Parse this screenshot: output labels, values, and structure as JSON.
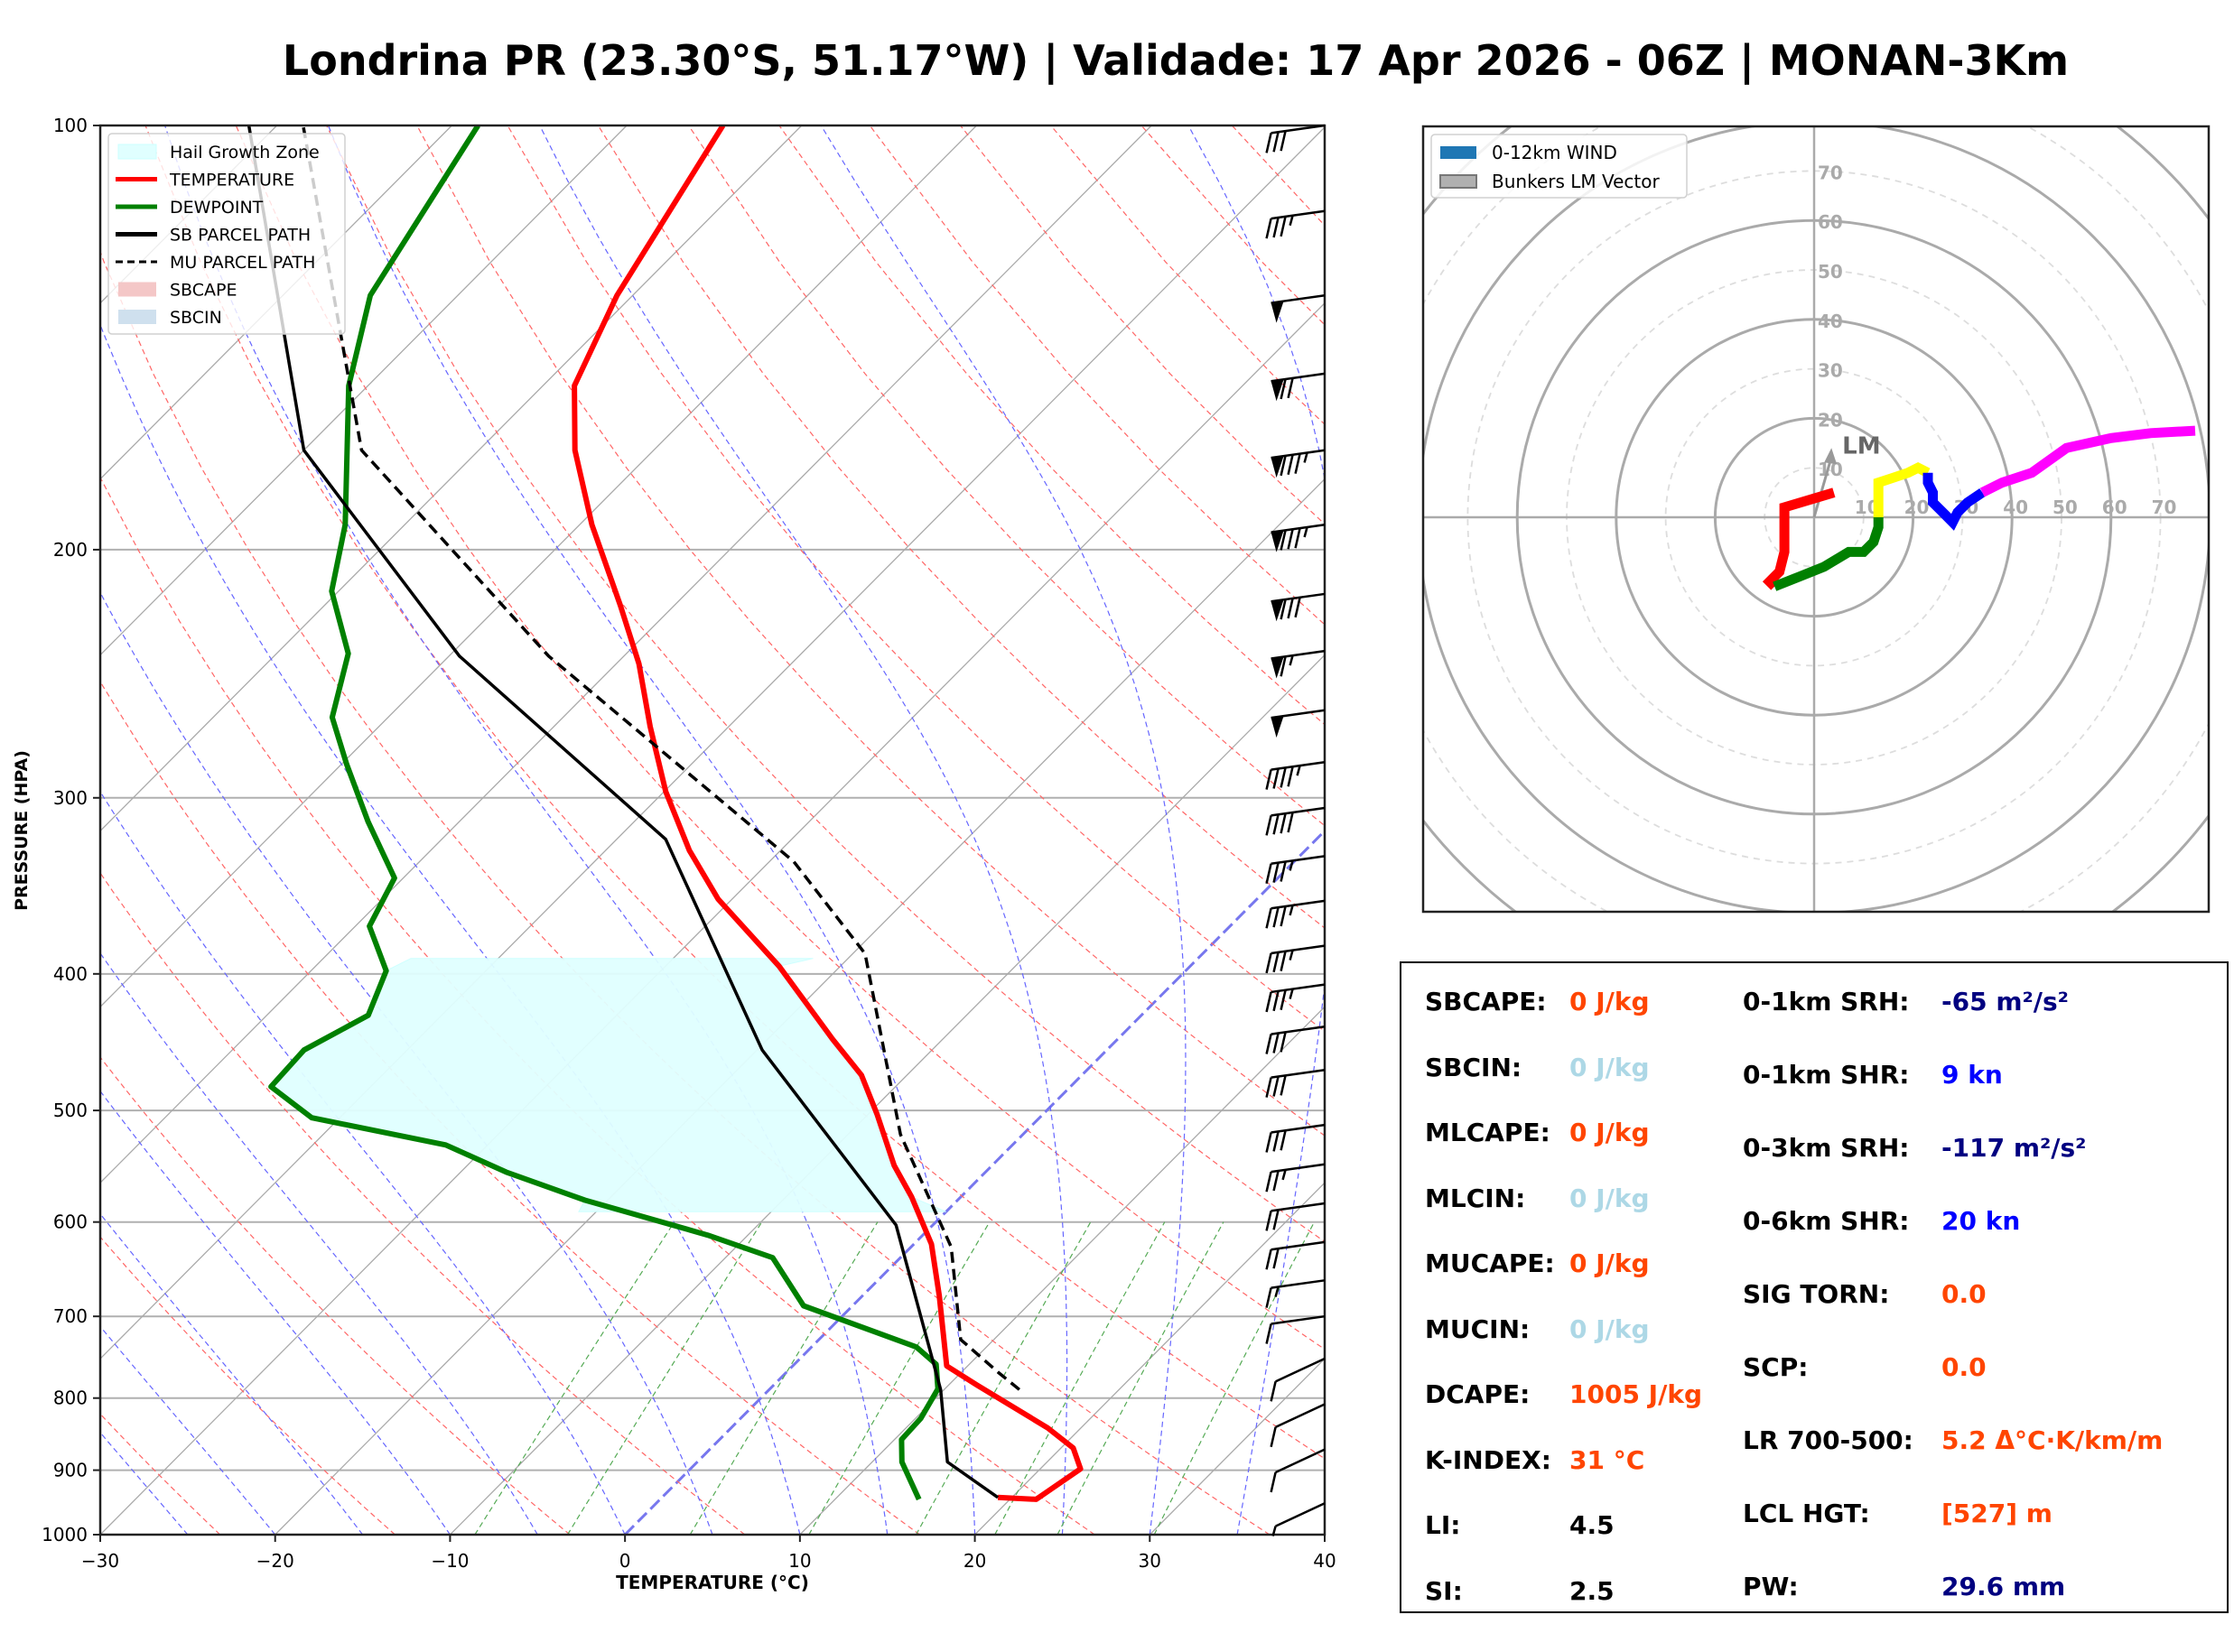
{
  "title": "Londrina PR (23.30°S, 51.17°W) | Validade: 17 Apr 2026 - 06Z | MONAN-3Km",
  "colors": {
    "temperature": "#ff0000",
    "dewpoint": "#008000",
    "parcel": "#000000",
    "hail_zone": "#e0ffff",
    "orange": "#ff4500",
    "lightblue": "#add8e6",
    "navy": "#000080",
    "blue": "#0000ff"
  },
  "chart_data": [
    {
      "type": "line",
      "name": "skewt",
      "xlabel": "TEMPERATURE (°C)",
      "ylabel": "PRESSURE (HPA)",
      "xlim": [
        -30,
        40
      ],
      "ylim": [
        1000,
        100
      ],
      "yscale": "log",
      "xticks": [
        -30,
        -20,
        -10,
        0,
        10,
        20,
        30,
        40
      ],
      "xtick_labels": [
        "−30",
        "−20",
        "−10",
        "0",
        "10",
        "20",
        "30",
        "40"
      ],
      "yticks": [
        100,
        200,
        300,
        400,
        500,
        600,
        700,
        800,
        900,
        1000
      ],
      "ytick_labels": [
        "100",
        "200",
        "300",
        "400",
        "500",
        "600",
        "700",
        "800",
        "900",
        "1000"
      ],
      "grid": true,
      "legend": {
        "placement": "top-left",
        "entries": [
          {
            "label": "Hail Growth Zone",
            "kind": "patch",
            "color": "#e0ffff"
          },
          {
            "label": "TEMPERATURE",
            "kind": "line",
            "color": "#ff0000"
          },
          {
            "label": "DEWPOINT",
            "kind": "line",
            "color": "#008000"
          },
          {
            "label": "SB PARCEL PATH",
            "kind": "line",
            "color": "#000000"
          },
          {
            "label": "MU PARCEL PATH",
            "kind": "dashed",
            "color": "#000000"
          },
          {
            "label": "SBCAPE",
            "kind": "patch",
            "color": "#f4c7c7"
          },
          {
            "label": "SBCIN",
            "kind": "patch",
            "color": "#cfe0ee"
          }
        ]
      },
      "series": [
        {
          "name": "TEMPERATURE",
          "points": [
            [
              941,
              19.2
            ],
            [
              944,
              21.5
            ],
            [
              898,
              22.3
            ],
            [
              868,
              20.7
            ],
            [
              840,
              18.1
            ],
            [
              783,
              11.6
            ],
            [
              759,
              8.8
            ],
            [
              677,
              4.4
            ],
            [
              622,
              1.0
            ],
            [
              576,
              -2.8
            ],
            [
              547,
              -5.6
            ],
            [
              503,
              -9.5
            ],
            [
              472,
              -12.6
            ],
            [
              445,
              -16.3
            ],
            [
              395,
              -23.5
            ],
            [
              354,
              -30.8
            ],
            [
              327,
              -35.2
            ],
            [
              297,
              -39.9
            ],
            [
              267,
              -44.5
            ],
            [
              241,
              -48.7
            ],
            [
              219,
              -53.1
            ],
            [
              192,
              -59.3
            ],
            [
              170,
              -64.5
            ],
            [
              153,
              -68.2
            ],
            [
              132,
              -70.9
            ],
            [
              100,
              -74.5
            ]
          ]
        },
        {
          "name": "DEWPOINT",
          "points": [
            [
              944,
              14.8
            ],
            [
              888,
              11.7
            ],
            [
              856,
              10.4
            ],
            [
              827,
              10.3
            ],
            [
              788,
              9.6
            ],
            [
              757,
              8.1
            ],
            [
              736,
              6.0
            ],
            [
              688,
              -2.8
            ],
            [
              636,
              -7.3
            ],
            [
              613,
              -12.3
            ],
            [
              579,
              -21.3
            ],
            [
              553,
              -27.4
            ],
            [
              529,
              -32.4
            ],
            [
              506,
              -41.6
            ],
            [
              481,
              -45.7
            ],
            [
              453,
              -45.9
            ],
            [
              428,
              -44.2
            ],
            [
              398,
              -45.7
            ],
            [
              370,
              -49.2
            ],
            [
              342,
              -50.5
            ],
            [
              312,
              -55.2
            ],
            [
              284,
              -59.7
            ],
            [
              263,
              -63.2
            ],
            [
              237,
              -65.9
            ],
            [
              214,
              -70.4
            ],
            [
              192,
              -73.4
            ],
            [
              153,
              -81.1
            ],
            [
              132,
              -85.0
            ],
            [
              100,
              -88.5
            ]
          ]
        },
        {
          "name": "SB PARCEL PATH",
          "points": [
            [
              941,
              19.2
            ],
            [
              888,
              14.3
            ],
            [
              789,
              9.8
            ],
            [
              603,
              -2.1
            ],
            [
              453,
              -19.7
            ],
            [
              321,
              -37.2
            ],
            [
              238,
              -59.4
            ],
            [
              170,
              -80.0
            ],
            [
              100,
              -101.6
            ]
          ]
        },
        {
          "name": "MU PARCEL PATH",
          "dashed": true,
          "points": [
            [
              789,
              14.3
            ],
            [
              768,
              12.2
            ],
            [
              727,
              8.1
            ],
            [
              625,
              2.3
            ],
            [
              520,
              -7.0
            ],
            [
              387,
              -19.3
            ],
            [
              333,
              -28.6
            ],
            [
              238,
              -54.3
            ],
            [
              170,
              -76.7
            ],
            [
              100,
              -98.5
            ]
          ]
        }
      ],
      "hail_growth_zone": {
        "p_top": 390,
        "p_bottom": 590
      },
      "wind_barbs": [
        {
          "p": 100,
          "kt": 30
        },
        {
          "p": 115,
          "kt": 35
        },
        {
          "p": 132,
          "kt": 50
        },
        {
          "p": 150,
          "kt": 70
        },
        {
          "p": 170,
          "kt": 85
        },
        {
          "p": 192,
          "kt": 85
        },
        {
          "p": 215,
          "kt": 80
        },
        {
          "p": 236,
          "kt": 65
        },
        {
          "p": 260,
          "kt": 50
        },
        {
          "p": 283,
          "kt": 45
        },
        {
          "p": 305,
          "kt": 40
        },
        {
          "p": 330,
          "kt": 35
        },
        {
          "p": 355,
          "kt": 35
        },
        {
          "p": 382,
          "kt": 35
        },
        {
          "p": 407,
          "kt": 35
        },
        {
          "p": 436,
          "kt": 30
        },
        {
          "p": 468,
          "kt": 30
        },
        {
          "p": 512,
          "kt": 30
        },
        {
          "p": 546,
          "kt": 25
        },
        {
          "p": 582,
          "kt": 20
        },
        {
          "p": 620,
          "kt": 20
        },
        {
          "p": 660,
          "kt": 15
        },
        {
          "p": 700,
          "kt": 10
        },
        {
          "p": 750,
          "kt": 10
        },
        {
          "p": 808,
          "kt": 10
        },
        {
          "p": 870,
          "kt": 10
        },
        {
          "p": 950,
          "kt": 5
        }
      ]
    },
    {
      "type": "line",
      "name": "hodograph",
      "rings_kt": [
        10,
        20,
        30,
        40,
        50,
        60,
        70
      ],
      "ring_labels": [
        "10",
        "20",
        "30",
        "40",
        "50",
        "60",
        "70"
      ],
      "legend": {
        "placement": "top-left",
        "entries": [
          {
            "label": "0-12km WIND",
            "color": "#1f77b4"
          },
          {
            "label": "Bunkers LM Vector",
            "color": "#b0b0b0"
          }
        ]
      },
      "lm_label": "LM",
      "lm_vector": [
        3.5,
        14
      ],
      "segments": [
        {
          "color": "#ff0000",
          "points": [
            [
              4,
              5
            ],
            [
              -6,
              2
            ],
            [
              -6,
              -7
            ],
            [
              -7,
              -11
            ],
            [
              -9,
              -13
            ],
            [
              -8,
              -14
            ]
          ]
        },
        {
          "color": "#008000",
          "points": [
            [
              -8,
              -14
            ],
            [
              -3,
              -12
            ],
            [
              2,
              -10
            ],
            [
              7,
              -7
            ],
            [
              10,
              -7
            ],
            [
              12,
              -5
            ],
            [
              13,
              -2
            ],
            [
              13,
              0
            ]
          ]
        },
        {
          "color": "#ffff00",
          "points": [
            [
              13,
              0
            ],
            [
              13,
              4
            ],
            [
              13,
              7
            ],
            [
              16,
              8
            ],
            [
              19,
              9
            ],
            [
              21,
              10
            ],
            [
              23,
              9
            ]
          ]
        },
        {
          "color": "#0000ff",
          "points": [
            [
              23,
              9
            ],
            [
              23,
              7
            ],
            [
              24,
              5
            ],
            [
              24,
              3
            ],
            [
              26,
              1
            ],
            [
              28,
              -1
            ],
            [
              29,
              1
            ],
            [
              31,
              3
            ],
            [
              34,
              5
            ]
          ]
        },
        {
          "color": "#ff00ff",
          "points": [
            [
              34,
              5
            ],
            [
              38,
              7
            ],
            [
              44,
              9
            ],
            [
              51,
              14
            ],
            [
              60,
              16
            ],
            [
              68,
              17
            ],
            [
              77,
              17.5
            ]
          ]
        }
      ]
    }
  ],
  "stats": {
    "left": [
      {
        "label": "SBCAPE:",
        "value": "0 J/kg",
        "color": "#ff4500"
      },
      {
        "label": "SBCIN:",
        "value": "0 J/kg",
        "color": "#add8e6"
      },
      {
        "label": "MLCAPE:",
        "value": "0 J/kg",
        "color": "#ff4500"
      },
      {
        "label": "MLCIN:",
        "value": "0 J/kg",
        "color": "#add8e6"
      },
      {
        "label": "MUCAPE:",
        "value": "0 J/kg",
        "color": "#ff4500"
      },
      {
        "label": "MUCIN:",
        "value": "0 J/kg",
        "color": "#add8e6"
      },
      {
        "label": "DCAPE:",
        "value": "1005 J/kg",
        "color": "#ff4500"
      },
      {
        "label": "K-INDEX:",
        "value": "31 °C",
        "color": "#ff4500"
      },
      {
        "label": "LI:",
        "value": "4.5",
        "color": "#000000"
      },
      {
        "label": "SI:",
        "value": "2.5",
        "color": "#000000"
      }
    ],
    "right": [
      {
        "label": "0-1km SRH:",
        "value": "-65 m²/s²",
        "color": "#000080"
      },
      {
        "label": "0-1km SHR:",
        "value": "9 kn",
        "color": "#0000ff"
      },
      {
        "label": "0-3km SRH:",
        "value": "-117 m²/s²",
        "color": "#000080"
      },
      {
        "label": "0-6km SHR:",
        "value": "20 kn",
        "color": "#0000ff"
      },
      {
        "label": "SIG TORN:",
        "value": "0.0",
        "color": "#ff4500"
      },
      {
        "label": "SCP:",
        "value": "0.0",
        "color": "#ff4500"
      },
      {
        "label": "LR 700-500:",
        "value": "5.2 Δ°C·K/km/m",
        "color": "#ff4500"
      },
      {
        "label": "LCL HGT:",
        "value": "[527] m",
        "color": "#ff4500"
      },
      {
        "label": "PW:",
        "value": "29.6 mm",
        "color": "#000080"
      }
    ]
  }
}
